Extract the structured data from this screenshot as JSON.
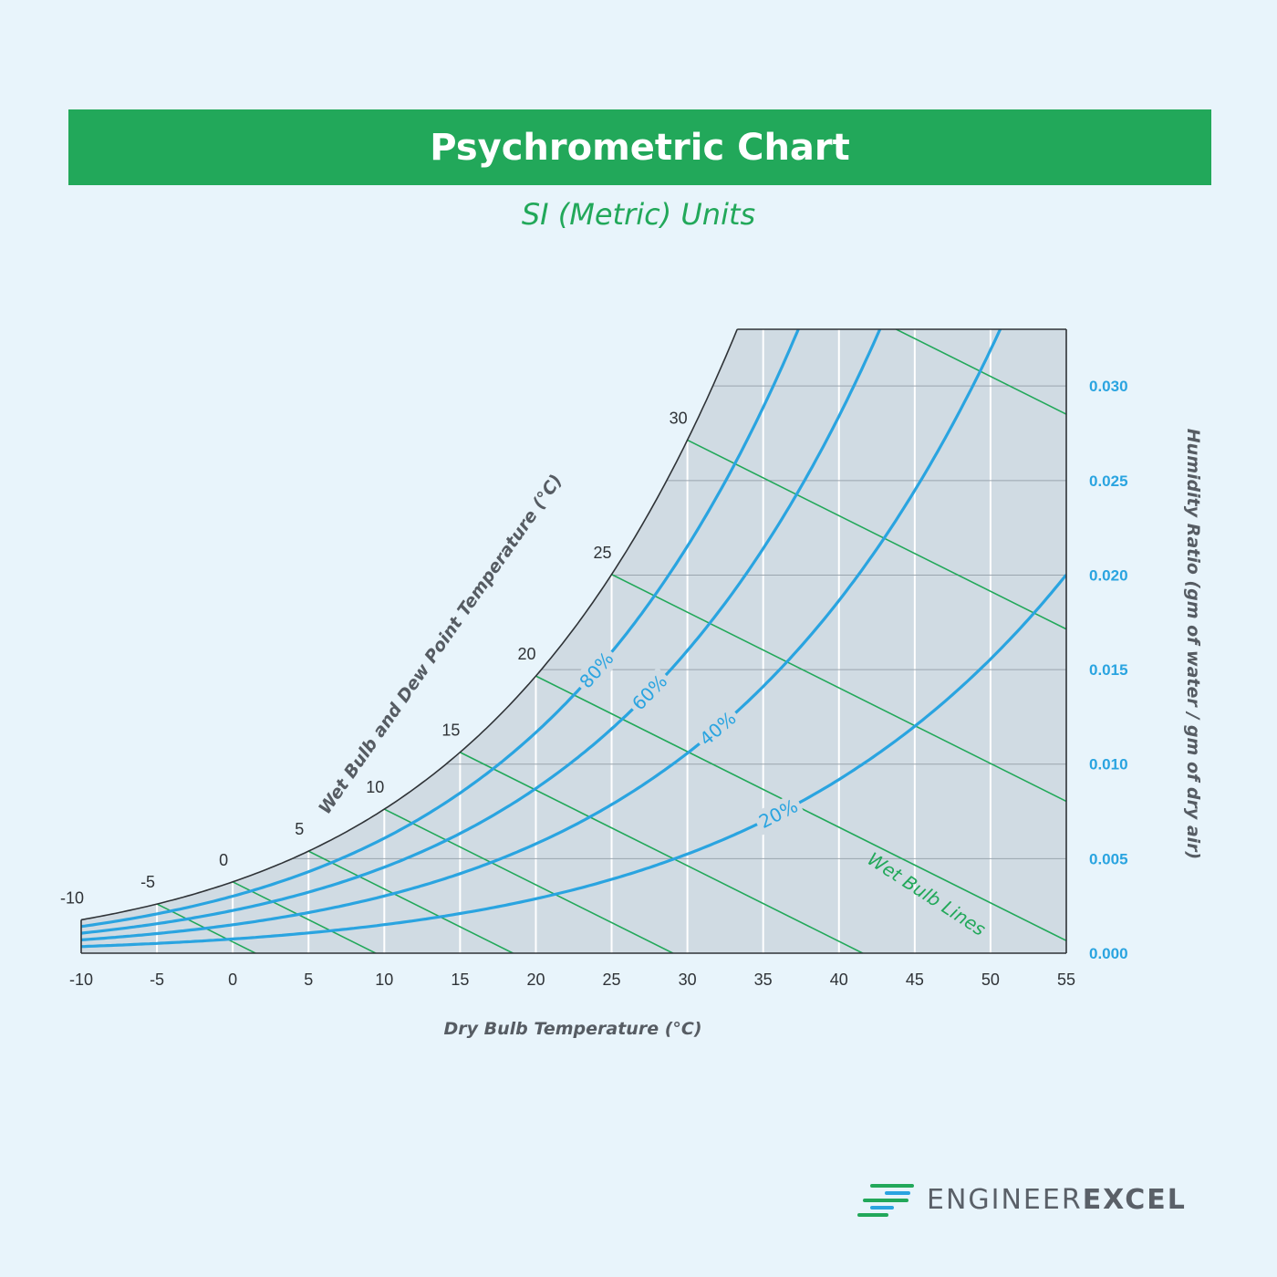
{
  "header": {
    "title": "Psychrometric Chart",
    "subtitle": "SI (Metric) Units"
  },
  "chart_data": {
    "type": "line",
    "title": "Psychrometric Chart",
    "subtitle": "SI (Metric) Units",
    "xlabel": "Dry Bulb Temperature (°C)",
    "ylabel": "Humidity Ratio (gm of water / gm of dry air)",
    "saturation_label": "Wet Bulb and Dew Point Temperature (°C)",
    "wet_bulb_label": "Wet Bulb Lines",
    "xlim": [
      -10,
      55
    ],
    "ylim": [
      0.0,
      0.033
    ],
    "x_ticks": [
      "-10",
      "-5",
      "0",
      "5",
      "10",
      "15",
      "20",
      "25",
      "30",
      "35",
      "40",
      "45",
      "50",
      "55"
    ],
    "y_ticks": [
      "0.000",
      "0.005",
      "0.010",
      "0.015",
      "0.020",
      "0.025",
      "0.030"
    ],
    "saturation_ticks": [
      "-10",
      "-5",
      "0",
      "5",
      "10",
      "15",
      "20",
      "25",
      "30"
    ],
    "relative_humidity_curves": [
      {
        "label": "80%",
        "rh": 0.8
      },
      {
        "label": "60%",
        "rh": 0.6
      },
      {
        "label": "40%",
        "rh": 0.4
      },
      {
        "label": "20%",
        "rh": 0.2
      }
    ],
    "wet_bulb_lines_c": [
      -5,
      0,
      5,
      10,
      15,
      20,
      25,
      30
    ],
    "grid": true,
    "colors": {
      "region": "#d0dbe3",
      "saturation_line": "#2f3337",
      "rh_curves": "#2aa4e0",
      "wet_bulb_lines": "#22a85a",
      "right_ticks": "#2aa4e0"
    }
  },
  "logo": {
    "part1": "ENGINEER",
    "part2": "EXCEL",
    "icon": "engineerexcel-logo-icon"
  }
}
